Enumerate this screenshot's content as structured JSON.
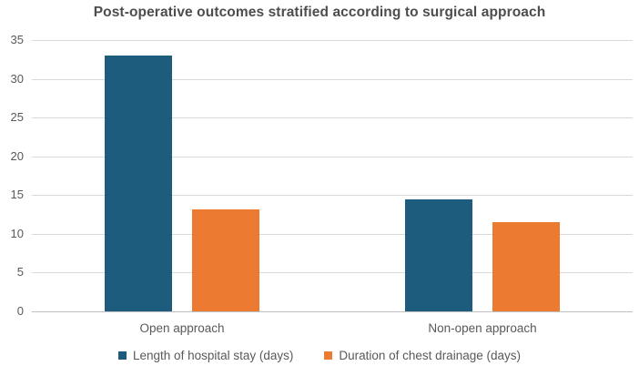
{
  "chart_data": {
    "type": "bar",
    "title": "Post-operative outcomes stratified according to surgical approach",
    "categories": [
      "Open approach",
      "Non-open approach"
    ],
    "series": [
      {
        "name": "Length of hospital stay (days)",
        "color": "#1E5C7E",
        "values": [
          33,
          14.5
        ]
      },
      {
        "name": "Duration of chest drainage (days)",
        "color": "#EC7A30",
        "values": [
          13.2,
          11.5
        ]
      }
    ],
    "y_axis": {
      "min": 0,
      "max": 35,
      "step": 5,
      "ticks": [
        0,
        5,
        10,
        15,
        20,
        25,
        30,
        35
      ]
    },
    "xlabel": "",
    "ylabel": "",
    "grid": "horizontal",
    "legend_position": "bottom"
  },
  "colors": {
    "title_text": "#4d4d4d",
    "label_text": "#595959",
    "gridline": "#d9d9d9",
    "axis_line": "#bfbfbf",
    "background": "#ffffff"
  }
}
